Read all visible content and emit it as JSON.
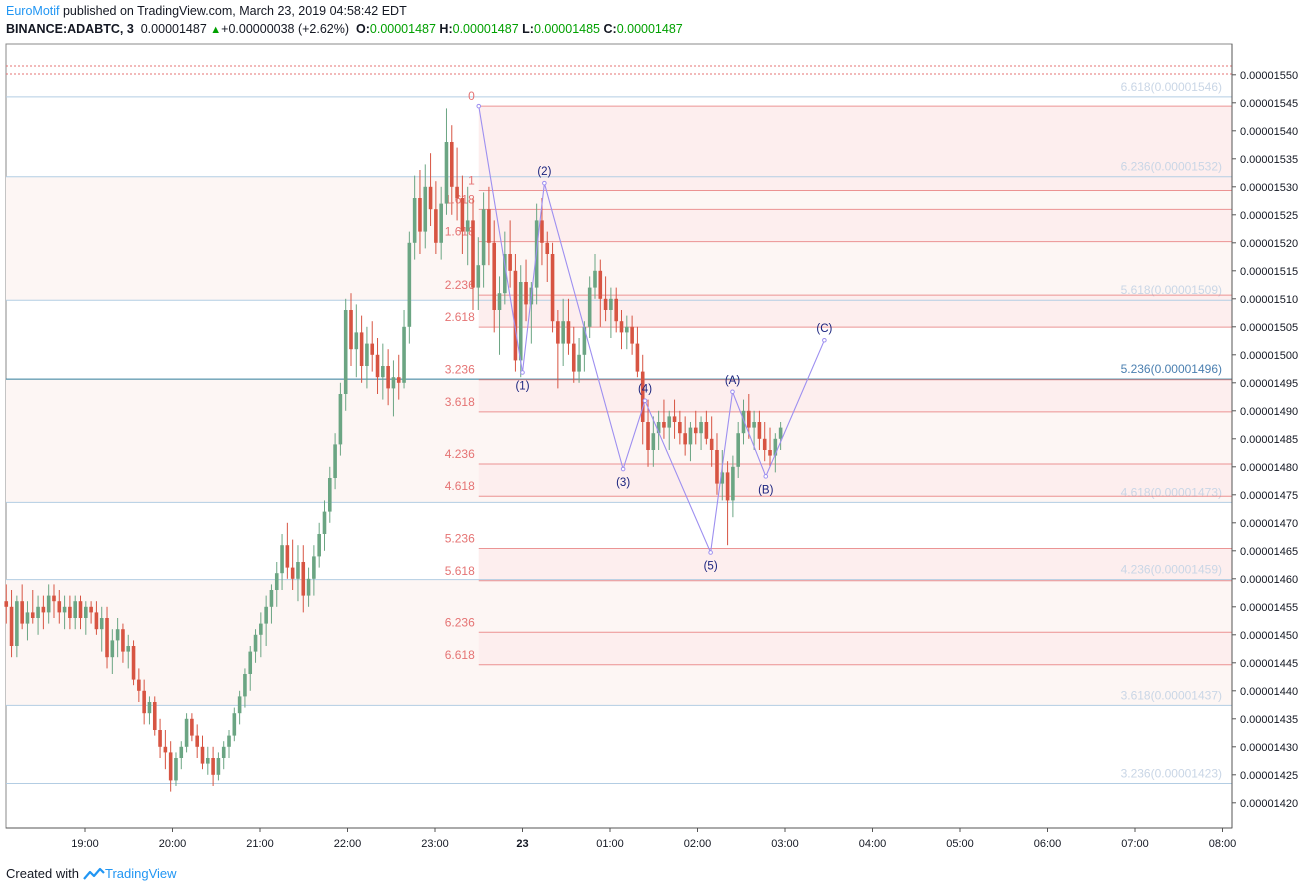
{
  "header": {
    "author": "EuroMotif",
    "published": " published on TradingView.com, March 23, 2019 04:58:42 EDT",
    "symbol": "BINANCE:ADABTC, 3",
    "last": "0.00001487",
    "change": "+0.00000038 (+2.62%)",
    "o_label": "O:",
    "o": "0.00001487",
    "h_label": "H:",
    "h": "0.00001487",
    "l_label": "L:",
    "l": "0.00001485",
    "c_label": "C:",
    "c": "0.00001487"
  },
  "footer": {
    "created": "Created with",
    "brand": "TradingView"
  },
  "colors": {
    "up": "#6ba583",
    "down": "#d75442",
    "wave": "#9d8ff0",
    "fib_line": "#e57373",
    "fib_fill": "#fdeeee",
    "right_line": "#b3cde3",
    "right_text": "#c9d6e6",
    "axis": "#555555"
  },
  "chart_data": {
    "type": "candlestick",
    "title": "BINANCE:ADABTC, 3",
    "ylim": [
      1.4155e-05,
      1.5555e-05
    ],
    "y_ticks": [
      "0.00001550",
      "0.00001545",
      "0.00001540",
      "0.00001535",
      "0.00001530",
      "0.00001525",
      "0.00001520",
      "0.00001515",
      "0.00001510",
      "0.00001505",
      "0.00001500",
      "0.00001495",
      "0.00001490",
      "0.00001485",
      "0.00001480",
      "0.00001475",
      "0.00001470",
      "0.00001465",
      "0.00001460",
      "0.00001455",
      "0.00001450",
      "0.00001445",
      "0.00001440",
      "0.00001435",
      "0.00001430",
      "0.00001425",
      "0.00001420"
    ],
    "x_ticks": [
      "19:00",
      "20:00",
      "21:00",
      "22:00",
      "23:00",
      "23",
      "01:00",
      "02:00",
      "03:00",
      "04:00",
      "05:00",
      "06:00",
      "07:00",
      "08:00"
    ],
    "left_fib": [
      {
        "label": "0",
        "price": 1.5444e-05
      },
      {
        "label": "1",
        "price": 1.52935e-05
      },
      {
        "label": "1.618",
        "price": 1.52597e-05
      },
      {
        "label": "1.618",
        "price": 1.5202e-05
      },
      {
        "label": "2.236",
        "price": 1.51065e-05
      },
      {
        "label": "2.618",
        "price": 1.50495e-05
      },
      {
        "label": "3.236",
        "price": 1.49555e-05
      },
      {
        "label": "3.618",
        "price": 1.4898e-05
      },
      {
        "label": "4.236",
        "price": 1.4805e-05
      },
      {
        "label": "4.618",
        "price": 1.47475e-05
      },
      {
        "label": "5.236",
        "price": 1.4654e-05
      },
      {
        "label": "5.618",
        "price": 1.45965e-05
      },
      {
        "label": "6.236",
        "price": 1.45045e-05
      },
      {
        "label": "6.618",
        "price": 1.44465e-05
      }
    ],
    "right_fib": [
      {
        "label": "6.618(0.00001546)",
        "price": 1.54605e-05
      },
      {
        "label": "6.236(0.00001532)",
        "price": 1.5318e-05
      },
      {
        "label": "5.618(0.00001509)",
        "price": 1.50975e-05
      },
      {
        "label": "5.236(0.00001496)",
        "price": 1.49565e-05
      },
      {
        "label": "4.618(0.00001473)",
        "price": 1.47365e-05
      },
      {
        "label": "4.236(0.00001459)",
        "price": 1.45985e-05
      },
      {
        "label": "3.618(0.00001437)",
        "price": 1.4374e-05
      },
      {
        "label": "3.236(0.00001423)",
        "price": 1.42345e-05
      }
    ],
    "waves": [
      {
        "label": "",
        "t": 23.5,
        "p": 1.5444e-05
      },
      {
        "label": "(1)",
        "t": 24.0,
        "p": 1.49685e-05
      },
      {
        "label": "(2)",
        "t": 24.25,
        "p": 1.53065e-05
      },
      {
        "label": "(3)",
        "t": 25.15,
        "p": 1.4796e-05
      },
      {
        "label": "(4)",
        "t": 25.4,
        "p": 1.4918e-05
      },
      {
        "label": "(5)",
        "t": 26.15,
        "p": 1.4647e-05
      },
      {
        "label": "(A)",
        "t": 26.4,
        "p": 1.4934e-05
      },
      {
        "label": "(B)",
        "t": 26.78,
        "p": 1.4783e-05
      },
      {
        "label": "(C)",
        "t": 27.45,
        "p": 1.5026e-05
      }
    ],
    "candles_ohlc_scaled_1e8": [
      [
        1456,
        1459,
        1452,
        1455
      ],
      [
        1455,
        1458,
        1446,
        1448
      ],
      [
        1448,
        1457,
        1446,
        1456
      ],
      [
        1456,
        1459,
        1451,
        1452
      ],
      [
        1452,
        1456,
        1449,
        1454
      ],
      [
        1454,
        1458,
        1452,
        1453
      ],
      [
        1453,
        1457,
        1450,
        1455
      ],
      [
        1455,
        1457,
        1451,
        1454
      ],
      [
        1454,
        1459,
        1452,
        1457
      ],
      [
        1457,
        1459,
        1453,
        1456
      ],
      [
        1456,
        1458,
        1452,
        1454
      ],
      [
        1454,
        1457,
        1451,
        1455
      ],
      [
        1455,
        1457,
        1451,
        1453
      ],
      [
        1453,
        1457,
        1451,
        1456
      ],
      [
        1456,
        1457,
        1451,
        1453
      ],
      [
        1453,
        1456,
        1450,
        1455
      ],
      [
        1455,
        1456,
        1452,
        1454
      ],
      [
        1454,
        1456,
        1450,
        1451
      ],
      [
        1451,
        1455,
        1447,
        1453
      ],
      [
        1453,
        1455,
        1444,
        1446
      ],
      [
        1446,
        1451,
        1443,
        1449
      ],
      [
        1449,
        1453,
        1446,
        1451
      ],
      [
        1451,
        1452,
        1445,
        1447
      ],
      [
        1447,
        1450,
        1444,
        1448
      ],
      [
        1448,
        1449,
        1441,
        1442
      ],
      [
        1442,
        1444,
        1438,
        1440
      ],
      [
        1440,
        1442,
        1434,
        1436
      ],
      [
        1436,
        1439,
        1434,
        1438
      ],
      [
        1438,
        1439,
        1432,
        1433
      ],
      [
        1433,
        1435,
        1428,
        1430
      ],
      [
        1430,
        1433,
        1426,
        1429
      ],
      [
        1429,
        1431,
        1422,
        1424
      ],
      [
        1424,
        1429,
        1423,
        1428
      ],
      [
        1428,
        1431,
        1426,
        1430
      ],
      [
        1430,
        1436,
        1429,
        1435
      ],
      [
        1435,
        1436,
        1431,
        1432
      ],
      [
        1432,
        1434,
        1428,
        1430
      ],
      [
        1430,
        1432,
        1426,
        1427
      ],
      [
        1427,
        1430,
        1425,
        1428
      ],
      [
        1428,
        1430,
        1423,
        1425
      ],
      [
        1425,
        1429,
        1424,
        1428
      ],
      [
        1428,
        1431,
        1426,
        1430
      ],
      [
        1430,
        1433,
        1428,
        1432
      ],
      [
        1432,
        1437,
        1431,
        1436
      ],
      [
        1436,
        1440,
        1434,
        1439
      ],
      [
        1439,
        1444,
        1437,
        1443
      ],
      [
        1443,
        1448,
        1440,
        1447
      ],
      [
        1447,
        1451,
        1445,
        1450
      ],
      [
        1450,
        1454,
        1446,
        1452
      ],
      [
        1452,
        1457,
        1448,
        1455
      ],
      [
        1455,
        1459,
        1452,
        1458
      ],
      [
        1458,
        1463,
        1455,
        1461
      ],
      [
        1461,
        1468,
        1458,
        1466
      ],
      [
        1466,
        1470,
        1460,
        1462
      ],
      [
        1462,
        1467,
        1458,
        1460
      ],
      [
        1460,
        1466,
        1456,
        1463
      ],
      [
        1463,
        1466,
        1454,
        1457
      ],
      [
        1457,
        1462,
        1455,
        1460
      ],
      [
        1460,
        1466,
        1457,
        1464
      ],
      [
        1464,
        1470,
        1462,
        1468
      ],
      [
        1468,
        1474,
        1465,
        1472
      ],
      [
        1472,
        1480,
        1470,
        1478
      ],
      [
        1478,
        1486,
        1476,
        1484
      ],
      [
        1484,
        1495,
        1482,
        1493
      ],
      [
        1493,
        1510,
        1490,
        1508
      ],
      [
        1508,
        1511,
        1498,
        1501
      ],
      [
        1501,
        1509,
        1496,
        1504
      ],
      [
        1504,
        1507,
        1495,
        1498
      ],
      [
        1498,
        1505,
        1494,
        1502
      ],
      [
        1502,
        1506,
        1497,
        1500
      ],
      [
        1500,
        1503,
        1493,
        1496
      ],
      [
        1496,
        1502,
        1492,
        1498
      ],
      [
        1498,
        1501,
        1491,
        1494
      ],
      [
        1494,
        1499,
        1489,
        1496
      ],
      [
        1496,
        1500,
        1492,
        1495
      ],
      [
        1495,
        1508,
        1494,
        1505
      ],
      [
        1505,
        1522,
        1502,
        1520
      ],
      [
        1520,
        1532,
        1517,
        1528
      ],
      [
        1528,
        1533,
        1518,
        1522
      ],
      [
        1522,
        1534,
        1519,
        1530
      ],
      [
        1530,
        1536,
        1523,
        1526
      ],
      [
        1526,
        1531,
        1518,
        1520
      ],
      [
        1520,
        1530,
        1517,
        1527
      ],
      [
        1527,
        1544,
        1525,
        1538
      ],
      [
        1538,
        1541,
        1525,
        1530
      ],
      [
        1530,
        1537,
        1524,
        1528
      ],
      [
        1528,
        1532,
        1518,
        1522
      ],
      [
        1522,
        1530,
        1516,
        1524
      ],
      [
        1524,
        1528,
        1508,
        1512
      ],
      [
        1512,
        1521,
        1508,
        1516
      ],
      [
        1516,
        1529,
        1512,
        1526
      ],
      [
        1526,
        1530,
        1516,
        1520
      ],
      [
        1520,
        1524,
        1504,
        1508
      ],
      [
        1508,
        1514,
        1500,
        1511
      ],
      [
        1511,
        1522,
        1509,
        1518
      ],
      [
        1518,
        1524,
        1512,
        1515
      ],
      [
        1515,
        1518,
        1497,
        1499
      ],
      [
        1499,
        1516,
        1496,
        1513
      ],
      [
        1513,
        1517,
        1506,
        1509
      ],
      [
        1509,
        1513,
        1502,
        1512
      ],
      [
        1512,
        1527,
        1509,
        1524
      ],
      [
        1524,
        1528,
        1516,
        1520
      ],
      [
        1520,
        1522,
        1513,
        1518
      ],
      [
        1518,
        1520,
        1504,
        1506
      ],
      [
        1506,
        1508,
        1494,
        1502
      ],
      [
        1502,
        1510,
        1498,
        1506
      ],
      [
        1506,
        1510,
        1500,
        1502
      ],
      [
        1502,
        1505,
        1495,
        1497
      ],
      [
        1497,
        1503,
        1495,
        1500
      ],
      [
        1500,
        1506,
        1497,
        1505
      ],
      [
        1505,
        1514,
        1503,
        1512
      ],
      [
        1512,
        1518,
        1510,
        1515
      ],
      [
        1515,
        1517,
        1505,
        1510
      ],
      [
        1510,
        1514,
        1506,
        1508
      ],
      [
        1508,
        1512,
        1503,
        1510
      ],
      [
        1510,
        1512,
        1504,
        1506
      ],
      [
        1506,
        1508,
        1501,
        1504
      ],
      [
        1504,
        1507,
        1501,
        1505
      ],
      [
        1505,
        1507,
        1500,
        1502
      ],
      [
        1502,
        1505,
        1496,
        1497
      ],
      [
        1497,
        1500,
        1484,
        1488
      ],
      [
        1488,
        1492,
        1480,
        1483
      ],
      [
        1483,
        1489,
        1480,
        1486
      ],
      [
        1486,
        1490,
        1483,
        1488
      ],
      [
        1488,
        1492,
        1485,
        1487
      ],
      [
        1487,
        1490,
        1483,
        1489
      ],
      [
        1489,
        1492,
        1485,
        1488
      ],
      [
        1488,
        1490,
        1484,
        1486
      ],
      [
        1486,
        1489,
        1482,
        1484
      ],
      [
        1484,
        1488,
        1481,
        1487
      ],
      [
        1487,
        1490,
        1484,
        1486
      ],
      [
        1486,
        1489,
        1483,
        1488
      ],
      [
        1488,
        1490,
        1484,
        1485
      ],
      [
        1485,
        1489,
        1480,
        1483
      ],
      [
        1483,
        1486,
        1475,
        1477
      ],
      [
        1477,
        1483,
        1474,
        1479
      ],
      [
        1479,
        1481,
        1466,
        1474
      ],
      [
        1474,
        1482,
        1471,
        1480
      ],
      [
        1480,
        1488,
        1478,
        1486
      ],
      [
        1486,
        1492,
        1484,
        1490
      ],
      [
        1490,
        1493,
        1485,
        1487
      ],
      [
        1487,
        1490,
        1483,
        1488
      ],
      [
        1488,
        1490,
        1483,
        1485
      ],
      [
        1485,
        1488,
        1481,
        1483
      ],
      [
        1483,
        1487,
        1480,
        1482
      ],
      [
        1482,
        1486,
        1479,
        1485
      ],
      [
        1485,
        1488,
        1483,
        1487
      ]
    ]
  }
}
